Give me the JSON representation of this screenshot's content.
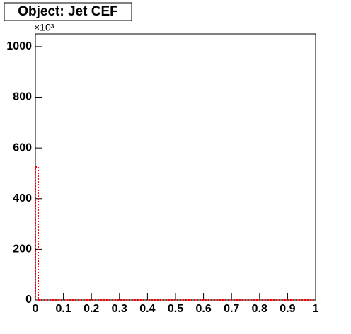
{
  "chart_data": {
    "type": "histogram",
    "title": "Object: Jet CEF",
    "y_multiplier": "×10³",
    "bins": [
      0,
      0.01,
      1
    ],
    "counts": [
      525,
      0
    ],
    "color": "#ff0000",
    "xlim": [
      0,
      1
    ],
    "xticks": [
      0,
      0.1,
      0.2,
      0.3,
      0.4,
      0.5,
      0.6,
      0.7,
      0.8,
      0.9,
      1
    ],
    "ylim": [
      0,
      1050
    ],
    "yticks": [
      0,
      200,
      400,
      600,
      800,
      1000
    ],
    "grid": false
  }
}
